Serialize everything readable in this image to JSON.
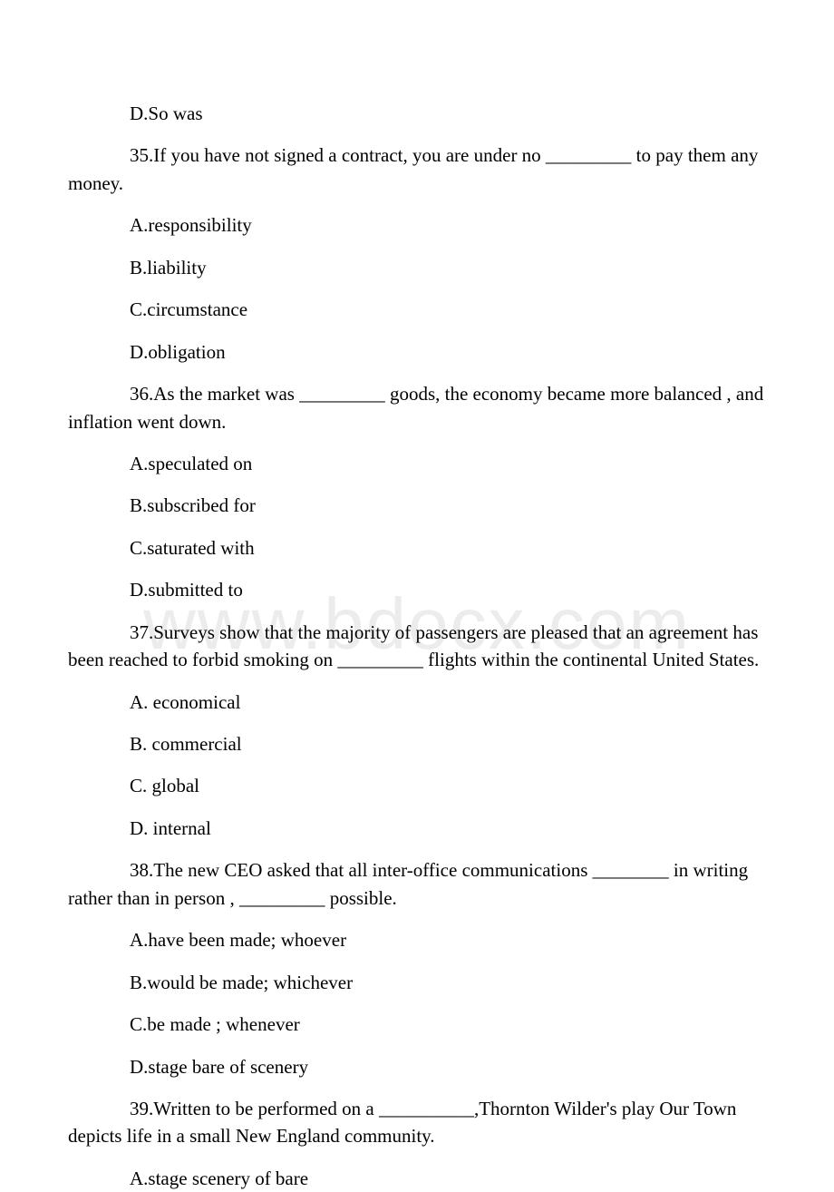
{
  "watermark": "www.bdocx.com",
  "q34": {
    "optD": "D.So was"
  },
  "q35": {
    "text": "35.If you have not signed a contract, you are under no _________ to pay them any money.",
    "optA": "A.responsibility",
    "optB": "B.liability",
    "optC": "C.circumstance",
    "optD": "D.obligation"
  },
  "q36": {
    "text": "36.As the market was _________ goods, the economy became more balanced , and inflation went down.",
    "optA": "A.speculated on",
    "optB": "B.subscribed for",
    "optC": "C.saturated with",
    "optD": "D.submitted to"
  },
  "q37": {
    "text": "37.Surveys show that the majority of passengers are pleased that an agreement has been reached to forbid smoking on _________ flights within the continental United States.",
    "optA": "A. economical",
    "optB": "B. commercial",
    "optC": "C. global",
    "optD": "D. internal"
  },
  "q38": {
    "text": "38.The new CEO asked that all inter-office communications ________ in writing rather than in person , _________ possible.",
    "optA": "A.have been made; whoever",
    "optB": "B.would be made; whichever",
    "optC": "C.be made ; whenever",
    "optD": "D.stage bare of scenery"
  },
  "q39": {
    "text": "39.Written to be performed on a __________,Thornton Wilder's play Our Town depicts life in a small New England community.",
    "optA": "A.stage scenery of bare"
  }
}
